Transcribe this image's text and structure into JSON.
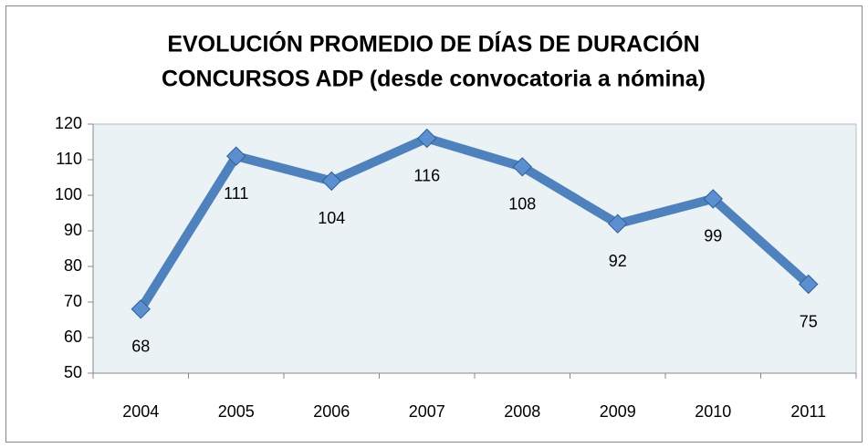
{
  "chart_data": {
    "type": "line",
    "title": [
      "EVOLUCIÓN PROMEDIO DE DÍAS DE DURACIÓN",
      "CONCURSOS ADP (desde convocatoria a nómina)"
    ],
    "categories": [
      "2004",
      "2005",
      "2006",
      "2007",
      "2008",
      "2009",
      "2010",
      "2011"
    ],
    "values": [
      68,
      111,
      104,
      116,
      108,
      92,
      99,
      75
    ],
    "color": "#4f81bd",
    "ylim": [
      50,
      120
    ],
    "yticks": [
      50,
      60,
      70,
      80,
      90,
      100,
      110,
      120
    ],
    "grid": false
  }
}
